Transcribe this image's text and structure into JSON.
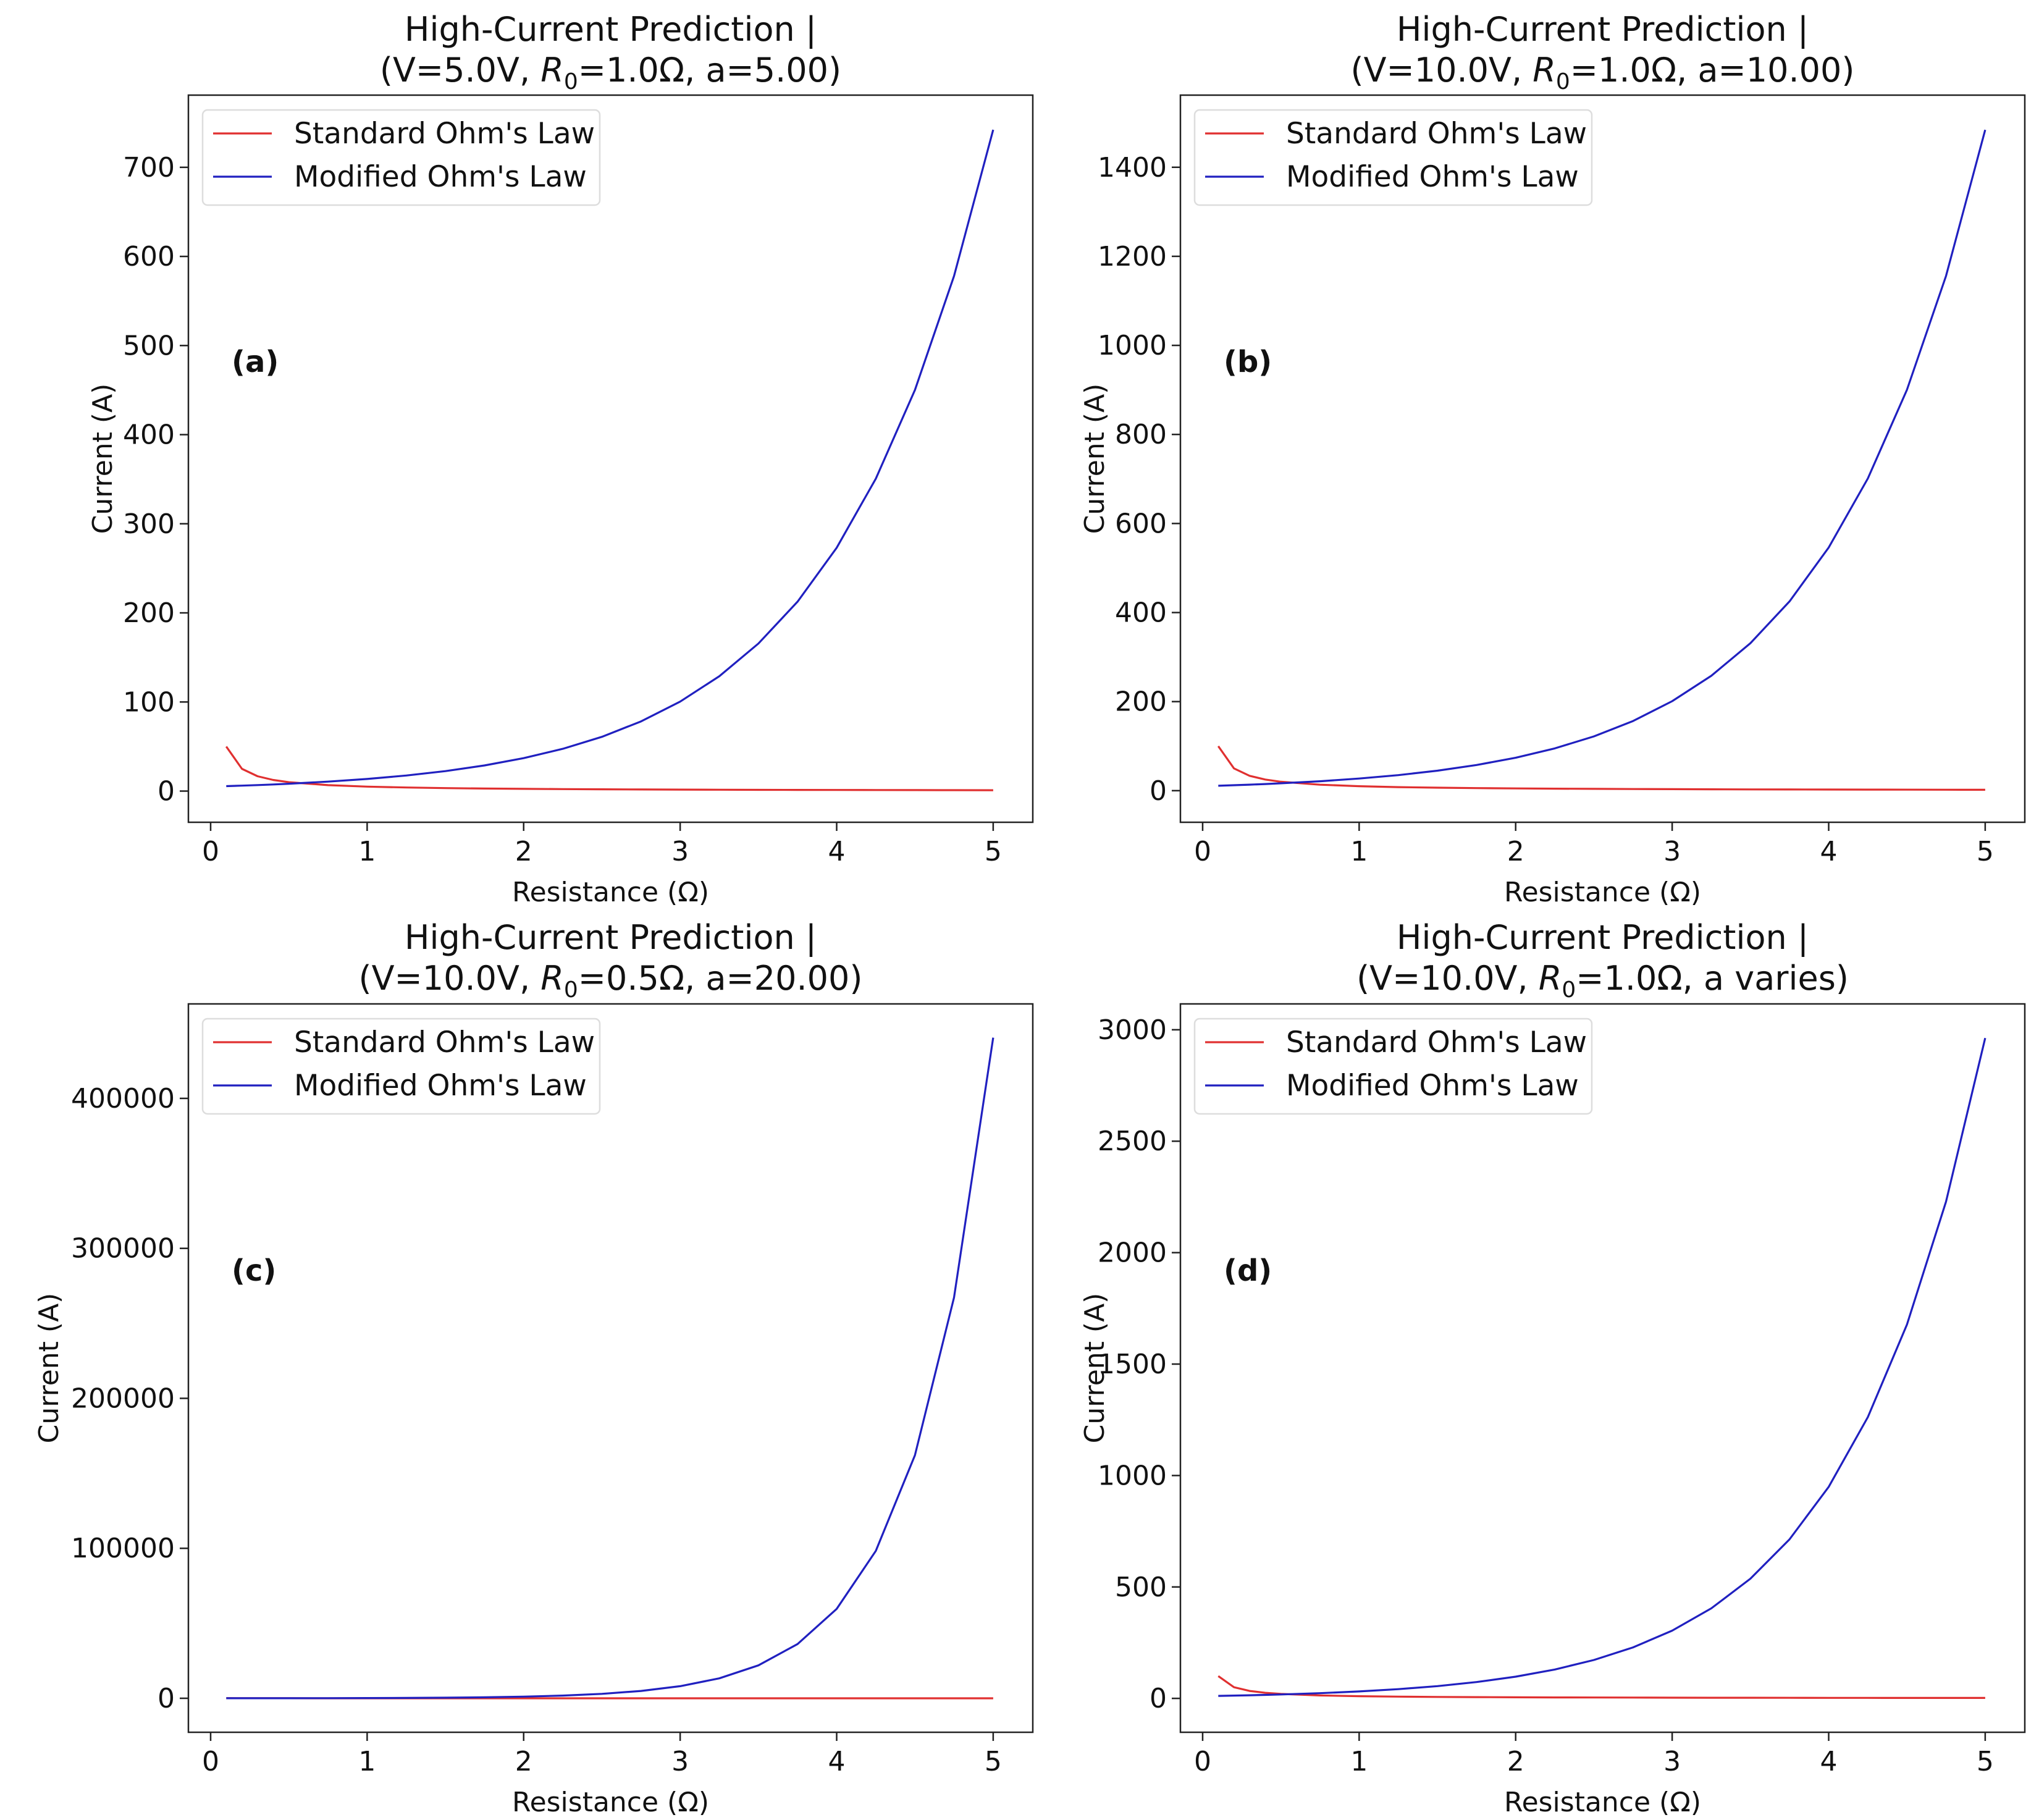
{
  "colors": {
    "standard": "#e03030",
    "modified": "#2020c0"
  },
  "chart_data": [
    {
      "type": "line",
      "panel_label": "(a)",
      "title_line1": "High-Current Prediction  |",
      "title_line2_parts": [
        "(V=5.0V, ",
        "R",
        "0",
        "=1.0Ω, a=5.00)"
      ],
      "xlabel": "Resistance (Ω)",
      "ylabel": "Current (A)",
      "xlim": [
        -0.142,
        5.253
      ],
      "ylim": [
        -35,
        781
      ],
      "xticks": [
        0,
        1,
        2,
        3,
        4,
        5
      ],
      "yticks": [
        0,
        100,
        200,
        300,
        400,
        500,
        600,
        700
      ],
      "legend_position": "upper-left",
      "x": [
        0.1,
        0.2,
        0.3,
        0.4,
        0.5,
        0.75,
        1,
        1.25,
        1.5,
        1.75,
        2,
        2.25,
        2.5,
        2.75,
        3,
        3.25,
        3.5,
        3.75,
        4,
        4.25,
        4.5,
        4.75,
        5
      ],
      "series": [
        {
          "name": "Standard Ohm's Law",
          "color_key": "standard",
          "values": [
            50,
            25,
            16.67,
            12.5,
            10,
            6.67,
            5,
            4,
            3.33,
            2.86,
            2.5,
            2.22,
            2,
            1.82,
            1.67,
            1.54,
            1.43,
            1.33,
            1.25,
            1.18,
            1.11,
            1.05,
            1
          ]
        },
        {
          "name": "Modified Ohm's Law",
          "color_key": "modified",
          "values": [
            5.53,
            6.11,
            6.75,
            7.46,
            8.24,
            10.59,
            13.59,
            17.45,
            22.41,
            28.78,
            36.95,
            47.44,
            60.91,
            78.2,
            100.4,
            128.9,
            165.6,
            212.6,
            273.0,
            350.6,
            450.1,
            578.0,
            742.1
          ]
        }
      ]
    },
    {
      "type": "line",
      "panel_label": "(b)",
      "title_line1": "High-Current Prediction  |",
      "title_line2_parts": [
        "(V=10.0V, ",
        "R",
        "0",
        "=1.0Ω, a=10.00)"
      ],
      "xlabel": "Resistance (Ω)",
      "ylabel": "Current (A)",
      "xlim": [
        -0.142,
        5.253
      ],
      "ylim": [
        -71,
        1562
      ],
      "xticks": [
        0,
        1,
        2,
        3,
        4,
        5
      ],
      "yticks": [
        0,
        200,
        400,
        600,
        800,
        1000,
        1200,
        1400
      ],
      "legend_position": "upper-left",
      "x": [
        0.1,
        0.2,
        0.3,
        0.4,
        0.5,
        0.75,
        1,
        1.25,
        1.5,
        1.75,
        2,
        2.25,
        2.5,
        2.75,
        3,
        3.25,
        3.5,
        3.75,
        4,
        4.25,
        4.5,
        4.75,
        5
      ],
      "series": [
        {
          "name": "Standard Ohm's Law",
          "color_key": "standard",
          "values": [
            100,
            50,
            33.3,
            25,
            20,
            13.3,
            10,
            8,
            6.67,
            5.71,
            5,
            4.44,
            4,
            3.64,
            3.33,
            3.08,
            2.86,
            2.67,
            2.5,
            2.35,
            2.22,
            2.11,
            2
          ]
        },
        {
          "name": "Modified Ohm's Law",
          "color_key": "modified",
          "values": [
            11.05,
            12.21,
            13.5,
            14.92,
            16.49,
            21.17,
            27.18,
            34.9,
            44.82,
            57.55,
            73.89,
            94.88,
            121.8,
            156.4,
            200.9,
            257.9,
            331.2,
            425.2,
            546.0,
            701.1,
            900.2,
            1156,
            1484
          ]
        }
      ]
    },
    {
      "type": "line",
      "panel_label": "(c)",
      "title_line1": "High-Current Prediction  |",
      "title_line2_parts": [
        "(V=10.0V, ",
        "R",
        "0",
        "=0.5Ω, a=20.00)"
      ],
      "xlabel": "Resistance (Ω)",
      "ylabel": "Current (A)",
      "xlim": [
        -0.142,
        5.253
      ],
      "ylim": [
        -22660,
        463000
      ],
      "xticks": [
        0,
        1,
        2,
        3,
        4,
        5
      ],
      "yticks": [
        0,
        100000,
        200000,
        300000,
        400000
      ],
      "legend_position": "upper-left",
      "x": [
        0.1,
        0.2,
        0.3,
        0.4,
        0.5,
        0.75,
        1,
        1.25,
        1.5,
        1.75,
        2,
        2.25,
        2.5,
        2.75,
        3,
        3.25,
        3.5,
        3.75,
        4,
        4.25,
        4.5,
        4.75,
        5
      ],
      "series": [
        {
          "name": "Standard Ohm's Law",
          "color_key": "standard",
          "values": [
            100,
            50,
            33.3,
            25,
            20,
            13.3,
            10,
            8,
            6.67,
            5.71,
            5,
            4.44,
            4,
            3.64,
            3.33,
            3.08,
            2.86,
            2.67,
            2.5,
            2.35,
            2.22,
            2.11,
            2
          ]
        },
        {
          "name": "Modified Ohm's Law",
          "color_key": "modified",
          "values": [
            24,
            30,
            36,
            45,
            54,
            90,
            148,
            244,
            402,
            662,
            1092,
            1800,
            2968,
            4894,
            8069,
            13302,
            21933,
            36162,
            59619,
            98300,
            162058,
            267200,
            440529
          ]
        }
      ]
    },
    {
      "type": "line",
      "panel_label": "(d)",
      "title_line1": "High-Current Prediction  |",
      "title_line2_parts": [
        "(V=10.0V, ",
        "R",
        "0",
        "=1.0Ω, a varies)"
      ],
      "xlabel": "Resistance (Ω)",
      "ylabel": "Current (A)",
      "xlim": [
        -0.142,
        5.253
      ],
      "ylim": [
        -152,
        3116
      ],
      "xticks": [
        0,
        1,
        2,
        3,
        4,
        5
      ],
      "yticks": [
        0,
        500,
        1000,
        1500,
        2000,
        2500,
        3000
      ],
      "legend_position": "upper-left",
      "x": [
        0.1,
        0.2,
        0.3,
        0.4,
        0.5,
        0.75,
        1,
        1.25,
        1.5,
        1.75,
        2,
        2.25,
        2.5,
        2.75,
        3,
        3.25,
        3.5,
        3.75,
        4,
        4.25,
        4.5,
        4.75,
        5
      ],
      "series": [
        {
          "name": "Standard Ohm's Law",
          "color_key": "standard",
          "values": [
            100,
            50,
            33.3,
            25,
            20,
            13.3,
            10,
            8,
            6.67,
            5.71,
            5,
            4.44,
            4,
            3.64,
            3.33,
            3.08,
            2.86,
            2.67,
            2.5,
            2.35,
            2.22,
            2.11,
            2
          ]
        },
        {
          "name": "Modified Ohm's Law",
          "color_key": "modified",
          "values": [
            11.2,
            12.6,
            14.1,
            15.8,
            17.7,
            23.5,
            31.2,
            41.5,
            55.1,
            73.3,
            97.4,
            129.5,
            172.2,
            228.8,
            304.1,
            404,
            537,
            714,
            949,
            1262,
            1677,
            2229,
            2963
          ]
        }
      ]
    }
  ]
}
